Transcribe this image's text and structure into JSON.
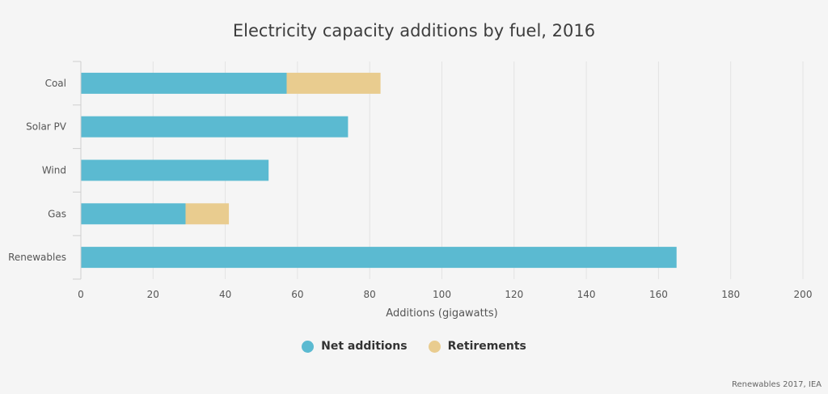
{
  "chart_data": {
    "type": "bar",
    "orientation": "horizontal",
    "stacked": true,
    "title": "Electricity capacity additions by fuel, 2016",
    "xlabel": "Additions (gigawatts)",
    "ylabel": "",
    "xlim": [
      0,
      200
    ],
    "xticks": [
      0,
      20,
      40,
      60,
      80,
      100,
      120,
      140,
      160,
      180,
      200
    ],
    "categories": [
      "Coal",
      "Solar PV",
      "Wind",
      "Gas",
      "Renewables"
    ],
    "series": [
      {
        "name": "Net additions",
        "color": "#5bbad1",
        "values": [
          57,
          74,
          52,
          29,
          165
        ]
      },
      {
        "name": "Retirements",
        "color": "#e9cc8f",
        "values": [
          26,
          0,
          0,
          12,
          0
        ]
      }
    ],
    "grid": "vertical",
    "legend_position": "bottom-center"
  },
  "source": "Renewables 2017, IEA"
}
